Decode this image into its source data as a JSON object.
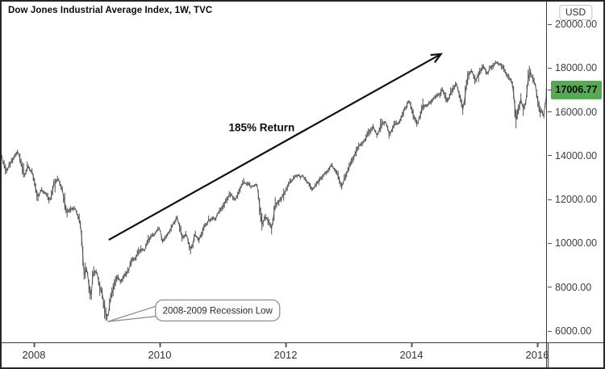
{
  "title": "Dow Jones Industrial Average Index, 1W, TVC",
  "annotations": {
    "return_label": {
      "text": "185% Return",
      "t": 2011.62,
      "v": 15280
    },
    "trend_arrow": {
      "from": {
        "t": 2009.19,
        "v": 10160
      },
      "to": {
        "t": 2014.47,
        "v": 18640
      }
    },
    "recession_callout": {
      "text": "2008-2009 Recession Low",
      "box_center": {
        "t": 2010.92,
        "v": 6940
      },
      "pointer_target": {
        "t": 2009.17,
        "v": 6430
      }
    }
  },
  "price_axis": {
    "currency_label": "USD",
    "ticks": [
      {
        "value": 20000,
        "label": "20000.00"
      },
      {
        "value": 18000,
        "label": "18000.00"
      },
      {
        "value": 16000,
        "label": "16000.00"
      },
      {
        "value": 14000,
        "label": "14000.00"
      },
      {
        "value": 12000,
        "label": "12000.00"
      },
      {
        "value": 10000,
        "label": "10000.00"
      },
      {
        "value": 8000,
        "label": "8000.00"
      },
      {
        "value": 6000,
        "label": "6000.00"
      }
    ],
    "last_price": {
      "value": 17006.77,
      "label": "17006.77"
    }
  },
  "time_axis": {
    "ticks": [
      {
        "year": 2008,
        "label": "2008"
      },
      {
        "year": 2010,
        "label": "2010"
      },
      {
        "year": 2012,
        "label": "2012"
      },
      {
        "year": 2014,
        "label": "2014"
      },
      {
        "year": 2016,
        "label": "2016"
      }
    ]
  },
  "colors": {
    "highlight_green": "#55ab52",
    "series_gray": "#4f4f4f",
    "annotation_black": "#111111",
    "callout_border": "#8f8f8f",
    "callout_fill": "#fcfcfc"
  },
  "chart_data": {
    "type": "line",
    "title": "Dow Jones Industrial Average Index, 1W, TVC",
    "symbol": "Dow Jones Industrial Average Index",
    "timeframe": "1W",
    "exchange": "TVC",
    "ylabel": "USD",
    "x_range": [
      2007.49,
      2016.16
    ],
    "y_ticks": [
      6000,
      8000,
      10000,
      12000,
      14000,
      16000,
      18000,
      20000
    ],
    "x_ticks": [
      2008,
      2010,
      2012,
      2014,
      2016
    ],
    "grid": false,
    "last_price": 17006.77,
    "key_points": {
      "pre_crisis_high": {
        "t": 2007.75,
        "v": 14160
      },
      "recession_low": {
        "t": 2009.17,
        "v": 6470
      },
      "post_recovery_high": {
        "t": 2015.35,
        "v": 18300
      },
      "return_from_low_pct": 185
    },
    "series": [
      {
        "name": "DJIA weekly (approx close)",
        "points": [
          [
            2007.49,
            13950
          ],
          [
            2007.56,
            13280
          ],
          [
            2007.62,
            13700
          ],
          [
            2007.68,
            13900
          ],
          [
            2007.75,
            14160
          ],
          [
            2007.8,
            13560
          ],
          [
            2007.85,
            13080
          ],
          [
            2007.9,
            13560
          ],
          [
            2007.98,
            13260
          ],
          [
            2008.02,
            12610
          ],
          [
            2008.06,
            12100
          ],
          [
            2008.12,
            12380
          ],
          [
            2008.2,
            12250
          ],
          [
            2008.25,
            11960
          ],
          [
            2008.33,
            12810
          ],
          [
            2008.38,
            13010
          ],
          [
            2008.45,
            12480
          ],
          [
            2008.52,
            11350
          ],
          [
            2008.58,
            11520
          ],
          [
            2008.65,
            11640
          ],
          [
            2008.7,
            11380
          ],
          [
            2008.74,
            10850
          ],
          [
            2008.77,
            9950
          ],
          [
            2008.8,
            8450
          ],
          [
            2008.84,
            8900
          ],
          [
            2008.88,
            7950
          ],
          [
            2008.91,
            7550
          ],
          [
            2008.94,
            8620
          ],
          [
            2009.0,
            8770
          ],
          [
            2009.04,
            8020
          ],
          [
            2009.08,
            7930
          ],
          [
            2009.12,
            7080
          ],
          [
            2009.17,
            6530
          ],
          [
            2009.21,
            7270
          ],
          [
            2009.27,
            8020
          ],
          [
            2009.33,
            8520
          ],
          [
            2009.38,
            8260
          ],
          [
            2009.42,
            8480
          ],
          [
            2009.5,
            8790
          ],
          [
            2009.54,
            9120
          ],
          [
            2009.62,
            9340
          ],
          [
            2009.7,
            9790
          ],
          [
            2009.75,
            9680
          ],
          [
            2009.83,
            10250
          ],
          [
            2009.92,
            10410
          ],
          [
            2010.0,
            10620
          ],
          [
            2010.05,
            10090
          ],
          [
            2010.11,
            10360
          ],
          [
            2010.18,
            10740
          ],
          [
            2010.28,
            11140
          ],
          [
            2010.36,
            10170
          ],
          [
            2010.42,
            10440
          ],
          [
            2010.5,
            9710
          ],
          [
            2010.56,
            10420
          ],
          [
            2010.62,
            10130
          ],
          [
            2010.7,
            10660
          ],
          [
            2010.78,
            11040
          ],
          [
            2010.88,
            11190
          ],
          [
            2010.98,
            11560
          ],
          [
            2011.05,
            11890
          ],
          [
            2011.12,
            12230
          ],
          [
            2011.2,
            12060
          ],
          [
            2011.3,
            12660
          ],
          [
            2011.35,
            12800
          ],
          [
            2011.45,
            12550
          ],
          [
            2011.55,
            12680
          ],
          [
            2011.6,
            11440
          ],
          [
            2011.63,
            10870
          ],
          [
            2011.68,
            11260
          ],
          [
            2011.73,
            10940
          ],
          [
            2011.78,
            10660
          ],
          [
            2011.83,
            11650
          ],
          [
            2011.9,
            11950
          ],
          [
            2011.96,
            12190
          ],
          [
            2012.04,
            12660
          ],
          [
            2012.12,
            12950
          ],
          [
            2012.2,
            13090
          ],
          [
            2012.28,
            13040
          ],
          [
            2012.35,
            12840
          ],
          [
            2012.42,
            12450
          ],
          [
            2012.49,
            12640
          ],
          [
            2012.56,
            12900
          ],
          [
            2012.65,
            13250
          ],
          [
            2012.73,
            13580
          ],
          [
            2012.8,
            13340
          ],
          [
            2012.85,
            12900
          ],
          [
            2012.9,
            12590
          ],
          [
            2012.96,
            13100
          ],
          [
            2013.0,
            13440
          ],
          [
            2013.08,
            13980
          ],
          [
            2013.16,
            14410
          ],
          [
            2013.25,
            14560
          ],
          [
            2013.33,
            15120
          ],
          [
            2013.4,
            15350
          ],
          [
            2013.46,
            14960
          ],
          [
            2013.53,
            15460
          ],
          [
            2013.6,
            15490
          ],
          [
            2013.65,
            14920
          ],
          [
            2013.72,
            15360
          ],
          [
            2013.8,
            15560
          ],
          [
            2013.88,
            16040
          ],
          [
            2013.96,
            16460
          ],
          [
            2014.04,
            15760
          ],
          [
            2014.1,
            15450
          ],
          [
            2014.18,
            16290
          ],
          [
            2014.26,
            16340
          ],
          [
            2014.34,
            16540
          ],
          [
            2014.42,
            16740
          ],
          [
            2014.5,
            17050
          ],
          [
            2014.57,
            16490
          ],
          [
            2014.65,
            17040
          ],
          [
            2014.72,
            17250
          ],
          [
            2014.78,
            16560
          ],
          [
            2014.82,
            16060
          ],
          [
            2014.89,
            17650
          ],
          [
            2014.96,
            17900
          ],
          [
            2015.02,
            17360
          ],
          [
            2015.08,
            17740
          ],
          [
            2015.14,
            18090
          ],
          [
            2015.2,
            17790
          ],
          [
            2015.28,
            18100
          ],
          [
            2015.35,
            18260
          ],
          [
            2015.41,
            18140
          ],
          [
            2015.48,
            17860
          ],
          [
            2015.55,
            17560
          ],
          [
            2015.6,
            17400
          ],
          [
            2015.64,
            16450
          ],
          [
            2015.66,
            15660
          ],
          [
            2015.7,
            16110
          ],
          [
            2015.74,
            16640
          ],
          [
            2015.78,
            16090
          ],
          [
            2015.82,
            16360
          ],
          [
            2015.86,
            17640
          ],
          [
            2015.9,
            17810
          ],
          [
            2015.94,
            17420
          ],
          [
            2015.98,
            17160
          ],
          [
            2016.02,
            16350
          ],
          [
            2016.04,
            15960
          ],
          [
            2016.08,
            16080
          ],
          [
            2016.1,
            15680
          ],
          [
            2016.13,
            16440
          ],
          [
            2016.16,
            17006.77
          ]
        ]
      }
    ]
  }
}
